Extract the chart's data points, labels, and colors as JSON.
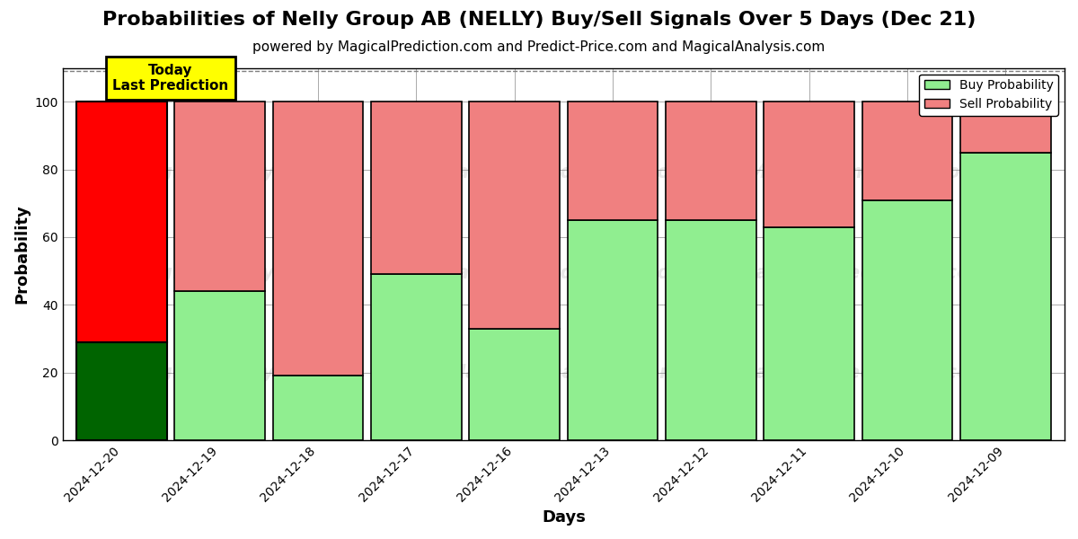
{
  "title": "Probabilities of Nelly Group AB (NELLY) Buy/Sell Signals Over 5 Days (Dec 21)",
  "subtitle": "powered by MagicalPrediction.com and Predict-Price.com and MagicalAnalysis.com",
  "xlabel": "Days",
  "ylabel": "Probability",
  "categories": [
    "2024-12-20",
    "2024-12-19",
    "2024-12-18",
    "2024-12-17",
    "2024-12-16",
    "2024-12-13",
    "2024-12-12",
    "2024-12-11",
    "2024-12-10",
    "2024-12-09"
  ],
  "buy_values": [
    29,
    44,
    19,
    49,
    33,
    65,
    65,
    63,
    71,
    85
  ],
  "sell_values": [
    71,
    56,
    81,
    51,
    67,
    35,
    35,
    37,
    29,
    15
  ],
  "today_bar_index": 0,
  "today_buy_color": "#006400",
  "today_sell_color": "#ff0000",
  "other_buy_color": "#90ee90",
  "other_sell_color": "#f08080",
  "today_label_bg": "#ffff00",
  "today_label_text": "Today\nLast Prediction",
  "legend_buy": "Buy Probability",
  "legend_sell": "Sell Probability",
  "ylim": [
    0,
    110
  ],
  "yticks": [
    0,
    20,
    40,
    60,
    80,
    100
  ],
  "dashed_line_y": 109,
  "background_color": "#ffffff",
  "grid_color": "#aaaaaa",
  "title_fontsize": 16,
  "subtitle_fontsize": 11,
  "axis_label_fontsize": 13,
  "tick_fontsize": 10,
  "bar_width": 0.92
}
